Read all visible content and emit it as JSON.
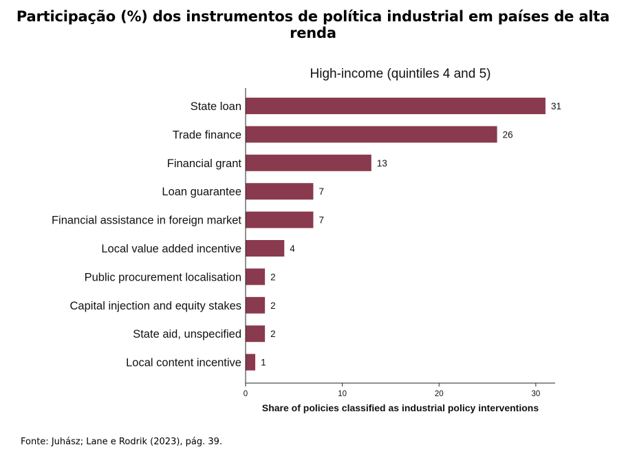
{
  "page": {
    "title": "Participação (%) dos instrumentos de política industrial em países de alta renda",
    "source": "Fonte: Juhász; Lane e Rodrik (2023), pág. 39."
  },
  "chart_data": {
    "type": "bar",
    "orientation": "horizontal",
    "title": "High-income (quintiles 4 and 5)",
    "xlabel": "Share of policies classified as industrial policy interventions",
    "ylabel": "",
    "categories": [
      "State loan",
      "Trade finance",
      "Financial grant",
      "Loan guarantee",
      "Financial assistance in foreign market",
      "Local value added incentive",
      "Public procurement localisation",
      "Capital injection and equity stakes",
      "State aid, unspecified",
      "Local content incentive"
    ],
    "values": [
      31,
      26,
      13,
      7,
      7,
      4,
      2,
      2,
      2,
      1
    ],
    "value_labels": [
      "31",
      "26",
      "13",
      "7",
      "7",
      "4",
      "2",
      "2",
      "2",
      "1"
    ],
    "xlim": [
      0,
      32
    ],
    "xticks": [
      0,
      10,
      20,
      30
    ],
    "xtick_labels": [
      "0",
      "10",
      "20",
      "30"
    ],
    "grid": false,
    "bar_color": "#8a3a4e"
  }
}
